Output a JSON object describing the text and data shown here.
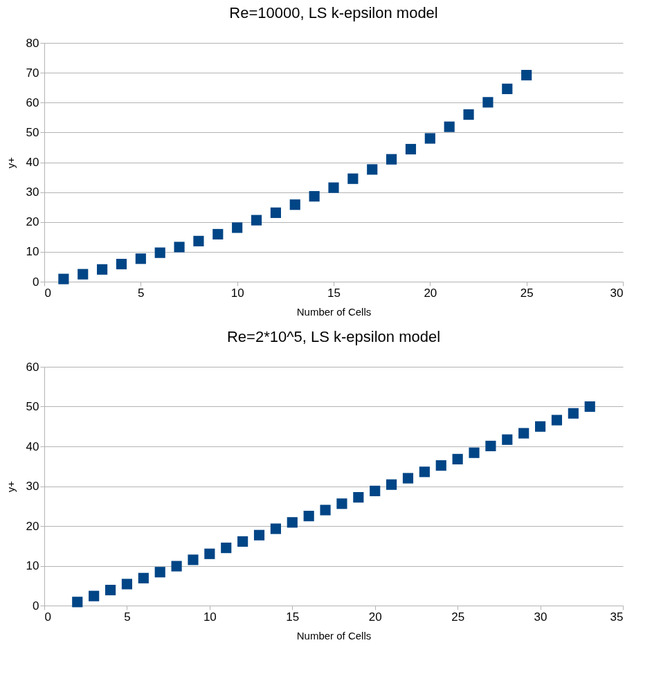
{
  "chart_data": [
    {
      "type": "scatter",
      "title": "Re=10000, LS k-epsilon model",
      "xlabel": "Number of Cells",
      "ylabel": "y+",
      "marker": "square",
      "grid": "y",
      "x": [
        1,
        2,
        3,
        4,
        5,
        6,
        7,
        8,
        9,
        10,
        11,
        12,
        13,
        14,
        15,
        16,
        17,
        18,
        19,
        20,
        21,
        22,
        23,
        24,
        25
      ],
      "series": [
        {
          "color": "#004586",
          "values": [
            0.9,
            2.5,
            4.1,
            5.9,
            7.7,
            9.7,
            11.6,
            13.6,
            15.9,
            18.1,
            20.6,
            23.1,
            25.8,
            28.6,
            31.5,
            34.5,
            37.6,
            41,
            44.4,
            48,
            51.9,
            56,
            60.1,
            64.6,
            69.2
          ]
        }
      ],
      "xlim": [
        0,
        30
      ],
      "xticks": [
        0,
        5,
        10,
        15,
        20,
        25,
        30
      ],
      "ylim": [
        0,
        80
      ],
      "yticks": [
        0,
        10,
        20,
        30,
        40,
        50,
        60,
        70,
        80
      ]
    },
    {
      "type": "scatter",
      "title": "Re=2*10^5, LS k-epsilon model",
      "xlabel": "Number of Cells",
      "ylabel": "y+",
      "marker": "square",
      "grid": "y",
      "x": [
        2,
        3,
        4,
        5,
        6,
        7,
        8,
        9,
        10,
        11,
        12,
        13,
        14,
        15,
        16,
        17,
        18,
        19,
        20,
        21,
        22,
        23,
        24,
        25,
        26,
        27,
        28,
        29,
        30,
        31,
        32,
        33
      ],
      "series": [
        {
          "color": "#004586",
          "values": [
            0.9,
            2.4,
            3.9,
            5.4,
            6.9,
            8.4,
            9.9,
            11.5,
            13,
            14.5,
            16.1,
            17.7,
            19.3,
            20.9,
            22.5,
            24,
            25.6,
            27.2,
            28.8,
            30.4,
            32,
            33.6,
            35.2,
            36.8,
            38.4,
            40.1,
            41.7,
            43.3,
            45,
            46.6,
            48.3,
            50
          ]
        }
      ],
      "xlim": [
        0,
        35
      ],
      "xticks": [
        0,
        5,
        10,
        15,
        20,
        25,
        30,
        35
      ],
      "ylim": [
        0,
        60
      ],
      "yticks": [
        0,
        10,
        20,
        30,
        40,
        50,
        60
      ]
    }
  ]
}
